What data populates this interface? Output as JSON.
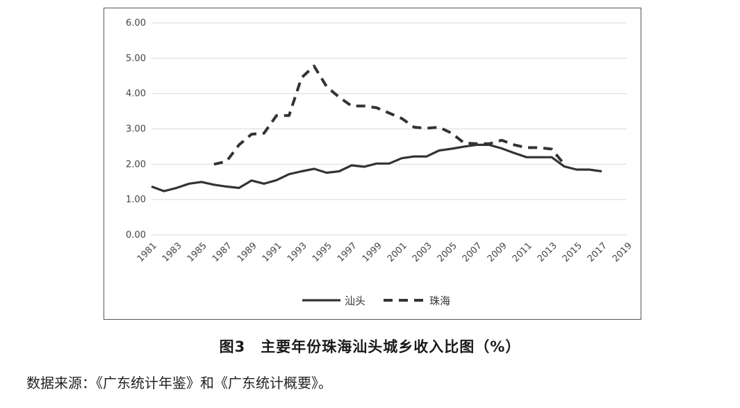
{
  "chart_data": {
    "type": "line",
    "title": "",
    "xlabel": "",
    "ylabel": "",
    "ylim": [
      0,
      6
    ],
    "yticks": [
      "0.00",
      "1.00",
      "2.00",
      "3.00",
      "4.00",
      "5.00",
      "6.00"
    ],
    "xlim": [
      1981,
      2019
    ],
    "xticks": [
      "1981",
      "1983",
      "1985",
      "1987",
      "1989",
      "1991",
      "1993",
      "1995",
      "1997",
      "1999",
      "2001",
      "2003",
      "2005",
      "2007",
      "2009",
      "2011",
      "2013",
      "2015",
      "2017",
      "2019"
    ],
    "grid": true,
    "legend_position": "bottom",
    "series": [
      {
        "name": "汕头",
        "style": "solid",
        "color": "#333333",
        "x": [
          1981,
          1982,
          1983,
          1984,
          1985,
          1986,
          1987,
          1988,
          1989,
          1990,
          1991,
          1992,
          1993,
          1994,
          1995,
          1996,
          1997,
          1998,
          1999,
          2000,
          2001,
          2002,
          2003,
          2004,
          2005,
          2006,
          2007,
          2008,
          2009,
          2010,
          2011,
          2012,
          2013,
          2014,
          2015,
          2016,
          2017
        ],
        "values": [
          1.37,
          1.24,
          1.33,
          1.45,
          1.5,
          1.42,
          1.37,
          1.33,
          1.54,
          1.45,
          1.55,
          1.72,
          1.8,
          1.87,
          1.76,
          1.8,
          1.97,
          1.93,
          2.02,
          2.02,
          2.17,
          2.22,
          2.22,
          2.39,
          2.44,
          2.5,
          2.55,
          2.55,
          2.45,
          2.32,
          2.2,
          2.2,
          2.2,
          1.94,
          1.85,
          1.85,
          1.8
        ]
      },
      {
        "name": "珠海",
        "style": "dashed",
        "color": "#333333",
        "x": [
          1986,
          1987,
          1988,
          1989,
          1990,
          1991,
          1992,
          1993,
          1994,
          1995,
          1996,
          1997,
          1998,
          1999,
          2000,
          2001,
          2002,
          2003,
          2004,
          2005,
          2006,
          2007,
          2008,
          2009,
          2010,
          2011,
          2012,
          2013,
          2014
        ],
        "values": [
          2.0,
          2.08,
          2.55,
          2.85,
          2.88,
          3.38,
          3.38,
          4.45,
          4.78,
          4.2,
          3.9,
          3.65,
          3.65,
          3.6,
          3.45,
          3.3,
          3.05,
          3.02,
          3.05,
          2.88,
          2.6,
          2.58,
          2.58,
          2.68,
          2.55,
          2.47,
          2.47,
          2.43,
          2.0
        ]
      }
    ]
  },
  "caption": "图3　主要年份珠海汕头城乡收入比图（%）",
  "source_note": "数据来源：《广东统计年鉴》和《广东统计概要》。"
}
